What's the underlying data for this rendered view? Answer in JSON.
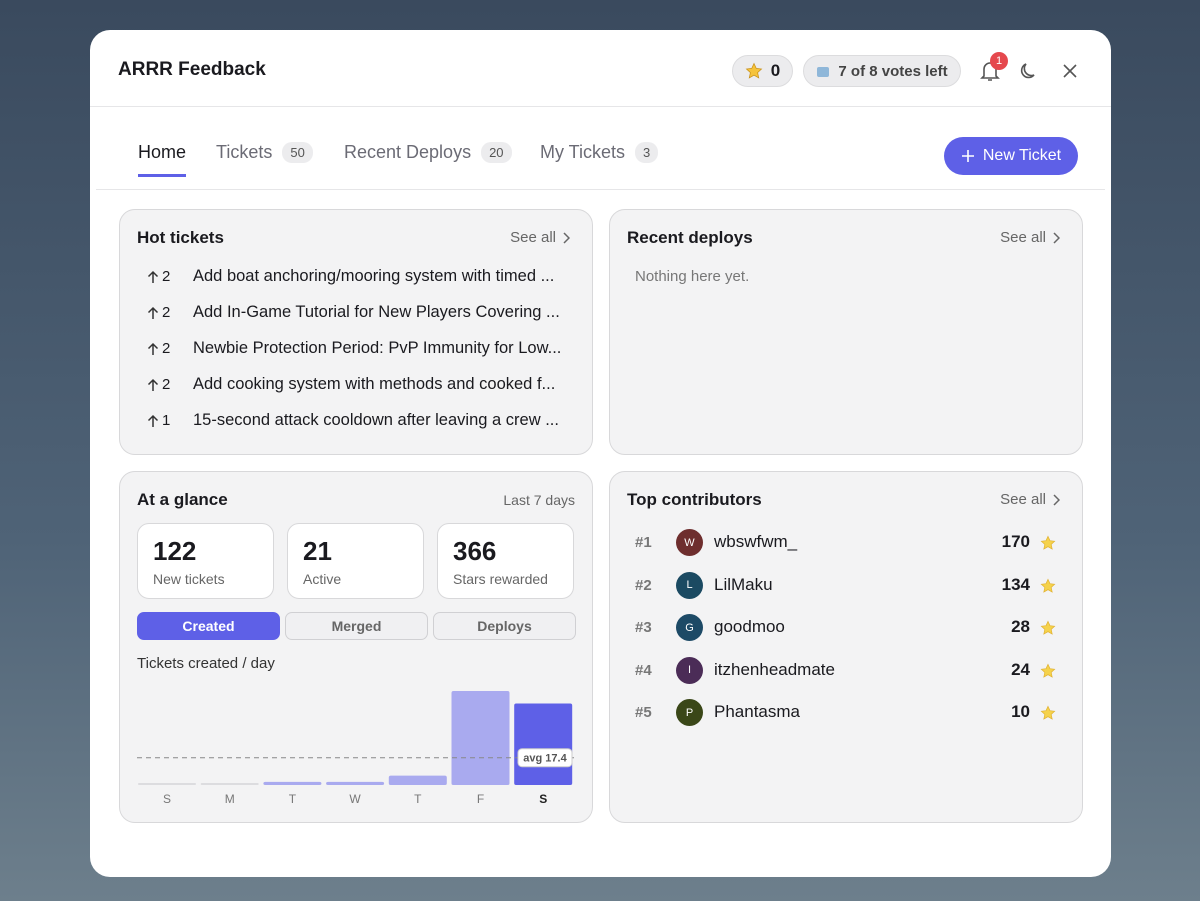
{
  "header": {
    "title": "ARRR Feedback",
    "stars": 0,
    "votes": "7 of 8 votes left",
    "notifications": 1
  },
  "tabs": [
    {
      "label": "Home"
    },
    {
      "label": "Tickets",
      "count": 50
    },
    {
      "label": "Recent Deploys",
      "count": 20
    },
    {
      "label": "My Tickets",
      "count": 3
    }
  ],
  "new_ticket": "New Ticket",
  "hot_tickets": {
    "title": "Hot tickets",
    "see_all": "See all",
    "items": [
      {
        "votes": 2,
        "title": "Add boat anchoring/mooring system with timed ..."
      },
      {
        "votes": 2,
        "title": "Add In-Game Tutorial for New Players Covering ..."
      },
      {
        "votes": 2,
        "title": "Newbie Protection Period: PvP Immunity for Low..."
      },
      {
        "votes": 2,
        "title": "Add cooking system with methods and cooked f..."
      },
      {
        "votes": 1,
        "title": "15-second attack cooldown after leaving a crew ..."
      }
    ]
  },
  "recent_deploys": {
    "title": "Recent deploys",
    "see_all": "See all",
    "empty": "Nothing here yet."
  },
  "glance": {
    "title": "At a glance",
    "period": "Last 7 days",
    "stats": [
      {
        "value": 122,
        "label": "New tickets"
      },
      {
        "value": 21,
        "label": "Active"
      },
      {
        "value": 366,
        "label": "Stars rewarded"
      }
    ],
    "toggles": [
      "Created",
      "Merged",
      "Deploys"
    ],
    "chart_data": {
      "type": "bar",
      "title": "Tickets created / day",
      "categories": [
        "S",
        "M",
        "T",
        "W",
        "T",
        "F",
        "S"
      ],
      "values": [
        0,
        0,
        2,
        2,
        6,
        60,
        52
      ],
      "colors": [
        "#a9aaef",
        "#a9aaef",
        "#a9aaef",
        "#a9aaef",
        "#a9aaef",
        "#a9aaef",
        "#5e60e7"
      ],
      "avg": 17.4,
      "avg_label": "avg 17.4"
    }
  },
  "contributors": {
    "title": "Top contributors",
    "see_all": "See all",
    "items": [
      {
        "rank": "#1",
        "initial": "W",
        "name": "wbswfwm_",
        "stars": 170,
        "color": "#6e2e2e"
      },
      {
        "rank": "#2",
        "initial": "L",
        "name": "LilMaku",
        "stars": 134,
        "color": "#1b4a62"
      },
      {
        "rank": "#3",
        "initial": "G",
        "name": "goodmoo",
        "stars": 28,
        "color": "#1d4a66"
      },
      {
        "rank": "#4",
        "initial": "I",
        "name": "itzhenheadmate",
        "stars": 24,
        "color": "#4b2c57"
      },
      {
        "rank": "#5",
        "initial": "P",
        "name": "Phantasma",
        "stars": 10,
        "color": "#3a4718"
      }
    ]
  }
}
